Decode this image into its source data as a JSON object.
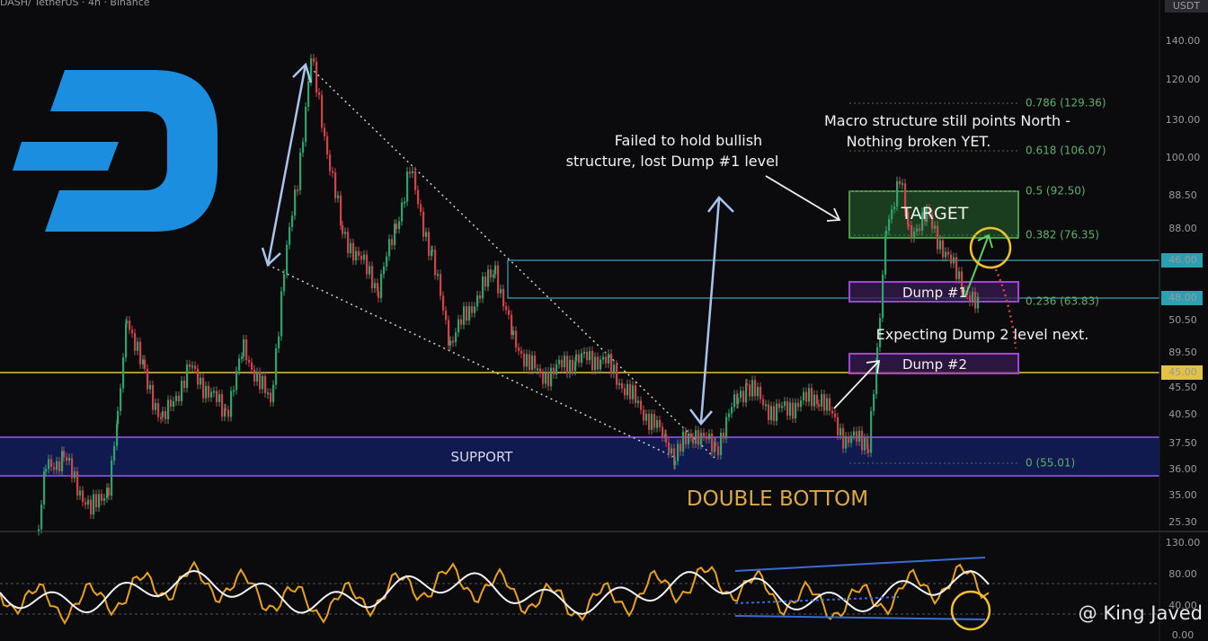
{
  "header": {
    "symbol": "DASH/ TetherUS · 4h · Binance",
    "currency": "USDT"
  },
  "price_axis": [
    "140.00",
    "120.00",
    "130.00",
    "100.00",
    "88.50",
    "88.00",
    "46.00",
    "48.00",
    "50.50",
    "89.50",
    "45.00",
    "45.50",
    "40.50",
    "37.50",
    "36.00",
    "35.00",
    "25.30"
  ],
  "indicator_axis": [
    "130.00",
    "80.00",
    "40.00",
    "0.00"
  ],
  "annotations": {
    "failed": [
      "Failed to hold bullish",
      "structure, lost Dump #1 level"
    ],
    "macro": [
      "Macro structure still points North -",
      "Nothing broken YET."
    ],
    "target": "TARGET",
    "dump1": "Dump #1",
    "dump2": "Dump #2",
    "expecting": "Expecting Dump 2 level next.",
    "support": "SUPPORT",
    "double_bottom": "DOUBLE BOTTOM"
  },
  "fib_levels": [
    "0.786 (129.36)",
    "0.618 (106.07)",
    "0.5 (92.50)",
    "0.382 (76.35)",
    "0.236 (63.83)",
    "0 (55.01)"
  ],
  "watermark": "@ King Javed"
}
